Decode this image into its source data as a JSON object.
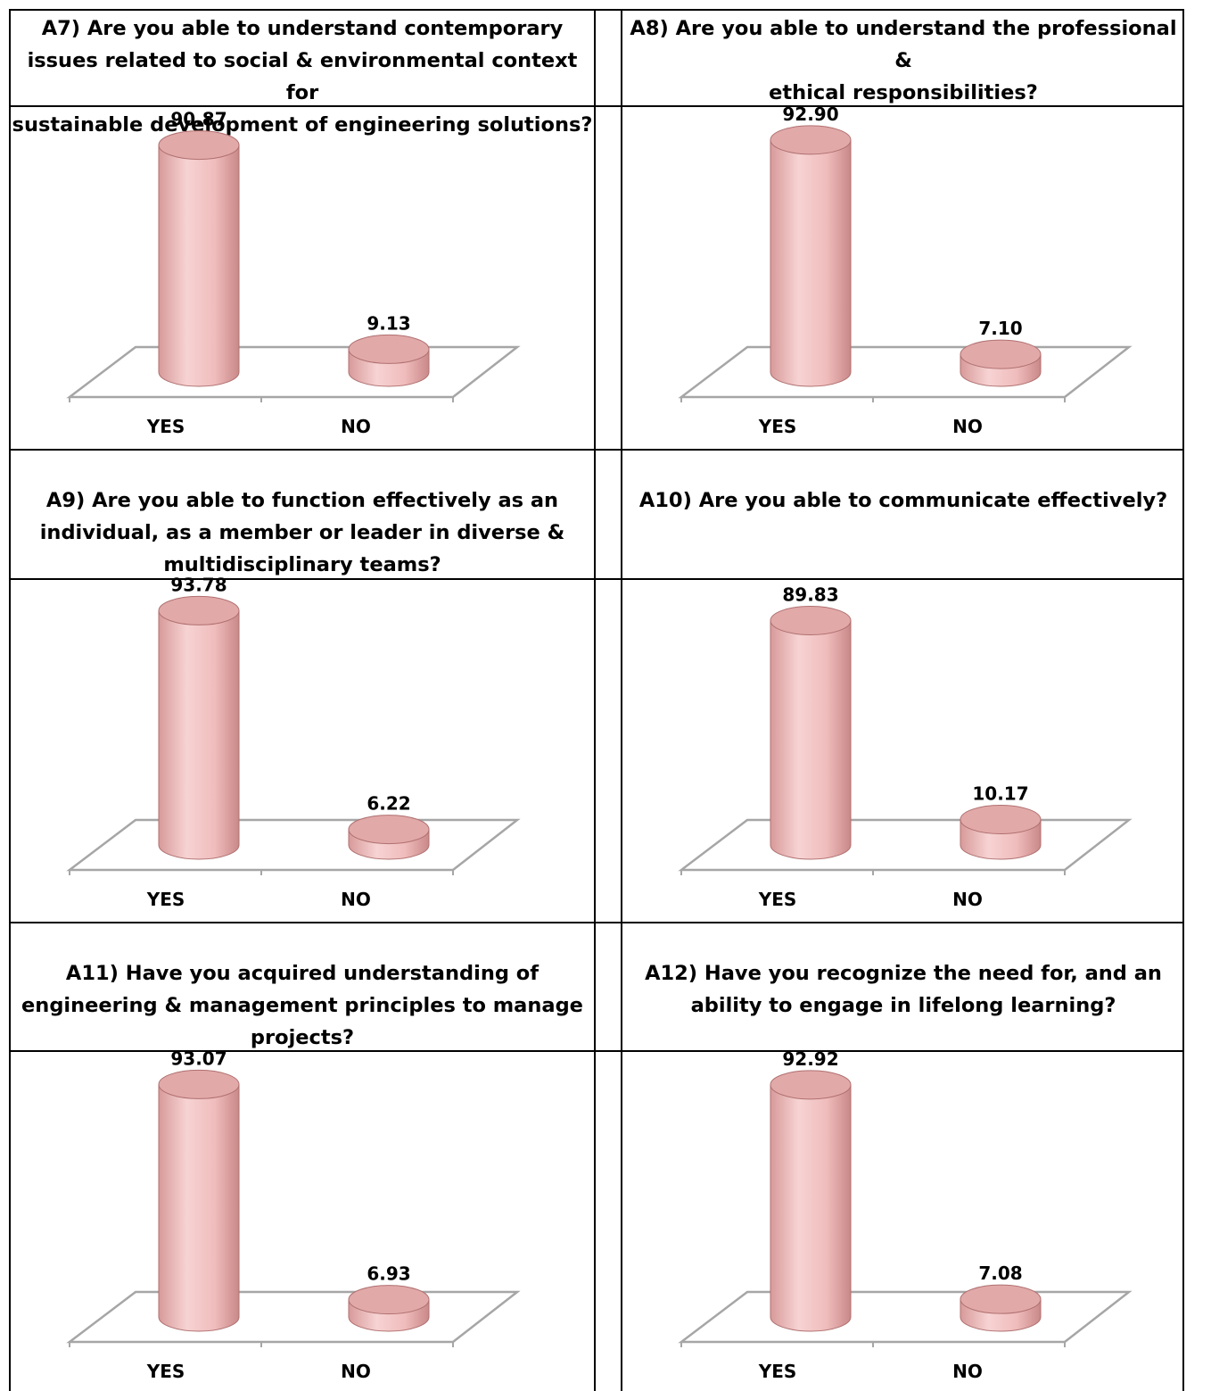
{
  "chart_data": [
    {
      "type": "bar",
      "title": "A7) Are you able to understand contemporary issues related to social & environmental context for sustainable development of engineering solutions?",
      "categories": [
        "YES",
        "NO"
      ],
      "values": [
        90.87,
        9.13
      ],
      "value_labels": [
        "90.87",
        "9.13"
      ],
      "ylim": [
        0,
        100
      ],
      "grid": false
    },
    {
      "type": "bar",
      "title": "A8) Are you able to understand the professional & ethical responsibilities?",
      "categories": [
        "YES",
        "NO"
      ],
      "values": [
        92.9,
        7.1
      ],
      "value_labels": [
        "92.90",
        "7.10"
      ],
      "ylim": [
        0,
        100
      ],
      "grid": false
    },
    {
      "type": "bar",
      "title": "A9) Are you able to function effectively as an individual, as a member or leader in diverse & multidisciplinary teams?",
      "categories": [
        "YES",
        "NO"
      ],
      "values": [
        93.78,
        6.22
      ],
      "value_labels": [
        "93.78",
        "6.22"
      ],
      "ylim": [
        0,
        100
      ],
      "grid": false
    },
    {
      "type": "bar",
      "title": "A10) Are you able to communicate effectively?",
      "categories": [
        "YES",
        "NO"
      ],
      "values": [
        89.83,
        10.17
      ],
      "value_labels": [
        "89.83",
        "10.17"
      ],
      "ylim": [
        0,
        100
      ],
      "grid": false
    },
    {
      "type": "bar",
      "title": "A11) Have you acquired understanding of engineering & management principles to manage projects?",
      "categories": [
        "YES",
        "NO"
      ],
      "values": [
        93.07,
        6.93
      ],
      "value_labels": [
        "93.07",
        "6.93"
      ],
      "ylim": [
        0,
        100
      ],
      "grid": false
    },
    {
      "type": "bar",
      "title": "A12) Have you recognize the need for, and an ability to engage in lifelong learning?",
      "categories": [
        "YES",
        "NO"
      ],
      "values": [
        92.92,
        7.08
      ],
      "value_labels": [
        "92.92",
        "7.08"
      ],
      "ylim": [
        0,
        100
      ],
      "grid": false
    }
  ],
  "titles": [
    [
      "A7) Are you able to understand contemporary",
      "issues related to social & environmental context for",
      "sustainable development of engineering solutions?"
    ],
    [
      "A8) Are you able to understand the professional &",
      "ethical responsibilities?"
    ],
    [
      "A9) Are you able to function effectively as an",
      "individual, as a member or leader in diverse &",
      "multidisciplinary teams?"
    ],
    [
      "A10) Are you able to communicate effectively?"
    ],
    [
      "A11) Have you acquired understanding of",
      "engineering & management principles to manage",
      "projects?"
    ],
    [
      "A12) Have you recognize the need for, and an",
      "ability to engage in lifelong learning?"
    ]
  ],
  "colors": {
    "bar_fill": "#f2c4c4",
    "bar_edge": "#b07070",
    "floor_line": "#a6a6a6",
    "border": "#000000"
  }
}
